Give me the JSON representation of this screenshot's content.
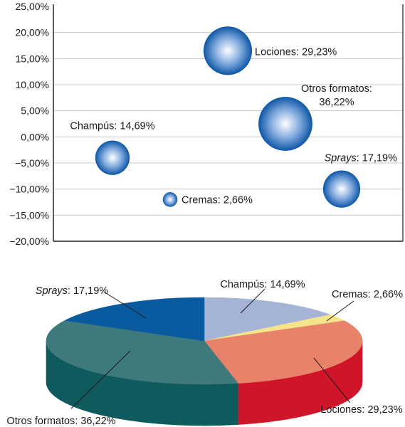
{
  "colors": {
    "bubble_light": "#ffffff",
    "bubble_mid": "#7ea8dc",
    "bubble_dark": "#0d56a5",
    "gridline": "#c8c8c8",
    "frame": "#1a1a1a",
    "text": "#1a1a1a"
  },
  "chart_data": [
    {
      "type": "scatter",
      "subtype": "bubble",
      "ylim": [
        -20,
        25
      ],
      "y_ticks": [
        "25,00%",
        "20,00%",
        "15,00%",
        "10,00%",
        "5,00%",
        "0,00%",
        "−5,00%",
        "−10,00%",
        "−15,00%",
        "−20,00%"
      ],
      "grid": true,
      "points": [
        {
          "name": "Champús",
          "value_label": "14,69%",
          "share": 14.69,
          "y": -4.0
        },
        {
          "name": "Cremas",
          "value_label": "2,66%",
          "share": 2.66,
          "y": -12.0
        },
        {
          "name": "Lociones",
          "value_label": "29,23%",
          "share": 29.23,
          "y": 16.5
        },
        {
          "name": "Otros formatos",
          "value_label": "36,22%",
          "share": 36.22,
          "y": 2.5
        },
        {
          "name": "Sprays",
          "value_label": "17,19%",
          "share": 17.19,
          "y": -10.0,
          "italic_name": true
        }
      ]
    },
    {
      "type": "pie",
      "style": "3d",
      "slices": [
        {
          "name": "Champús",
          "value_label": "14,69%",
          "value": 14.69,
          "color": "#a5b4d6",
          "side_color": "#7c8bb0"
        },
        {
          "name": "Cremas",
          "value_label": "2,66%",
          "value": 2.66,
          "color": "#f5e48a",
          "side_color": "#cdbb57"
        },
        {
          "name": "Lociones",
          "value_label": "29,23%",
          "value": 29.23,
          "color": "#e8826a",
          "side_color": "#d0152a"
        },
        {
          "name": "Otros formatos",
          "value_label": "36,22%",
          "value": 36.22,
          "color": "#3e7a7c",
          "side_color": "#0e5a5c"
        },
        {
          "name": "Sprays",
          "value_label": "17,19%",
          "value": 17.19,
          "color": "#0a5aa0",
          "side_color": "#06407a",
          "italic_name": true
        }
      ]
    }
  ]
}
